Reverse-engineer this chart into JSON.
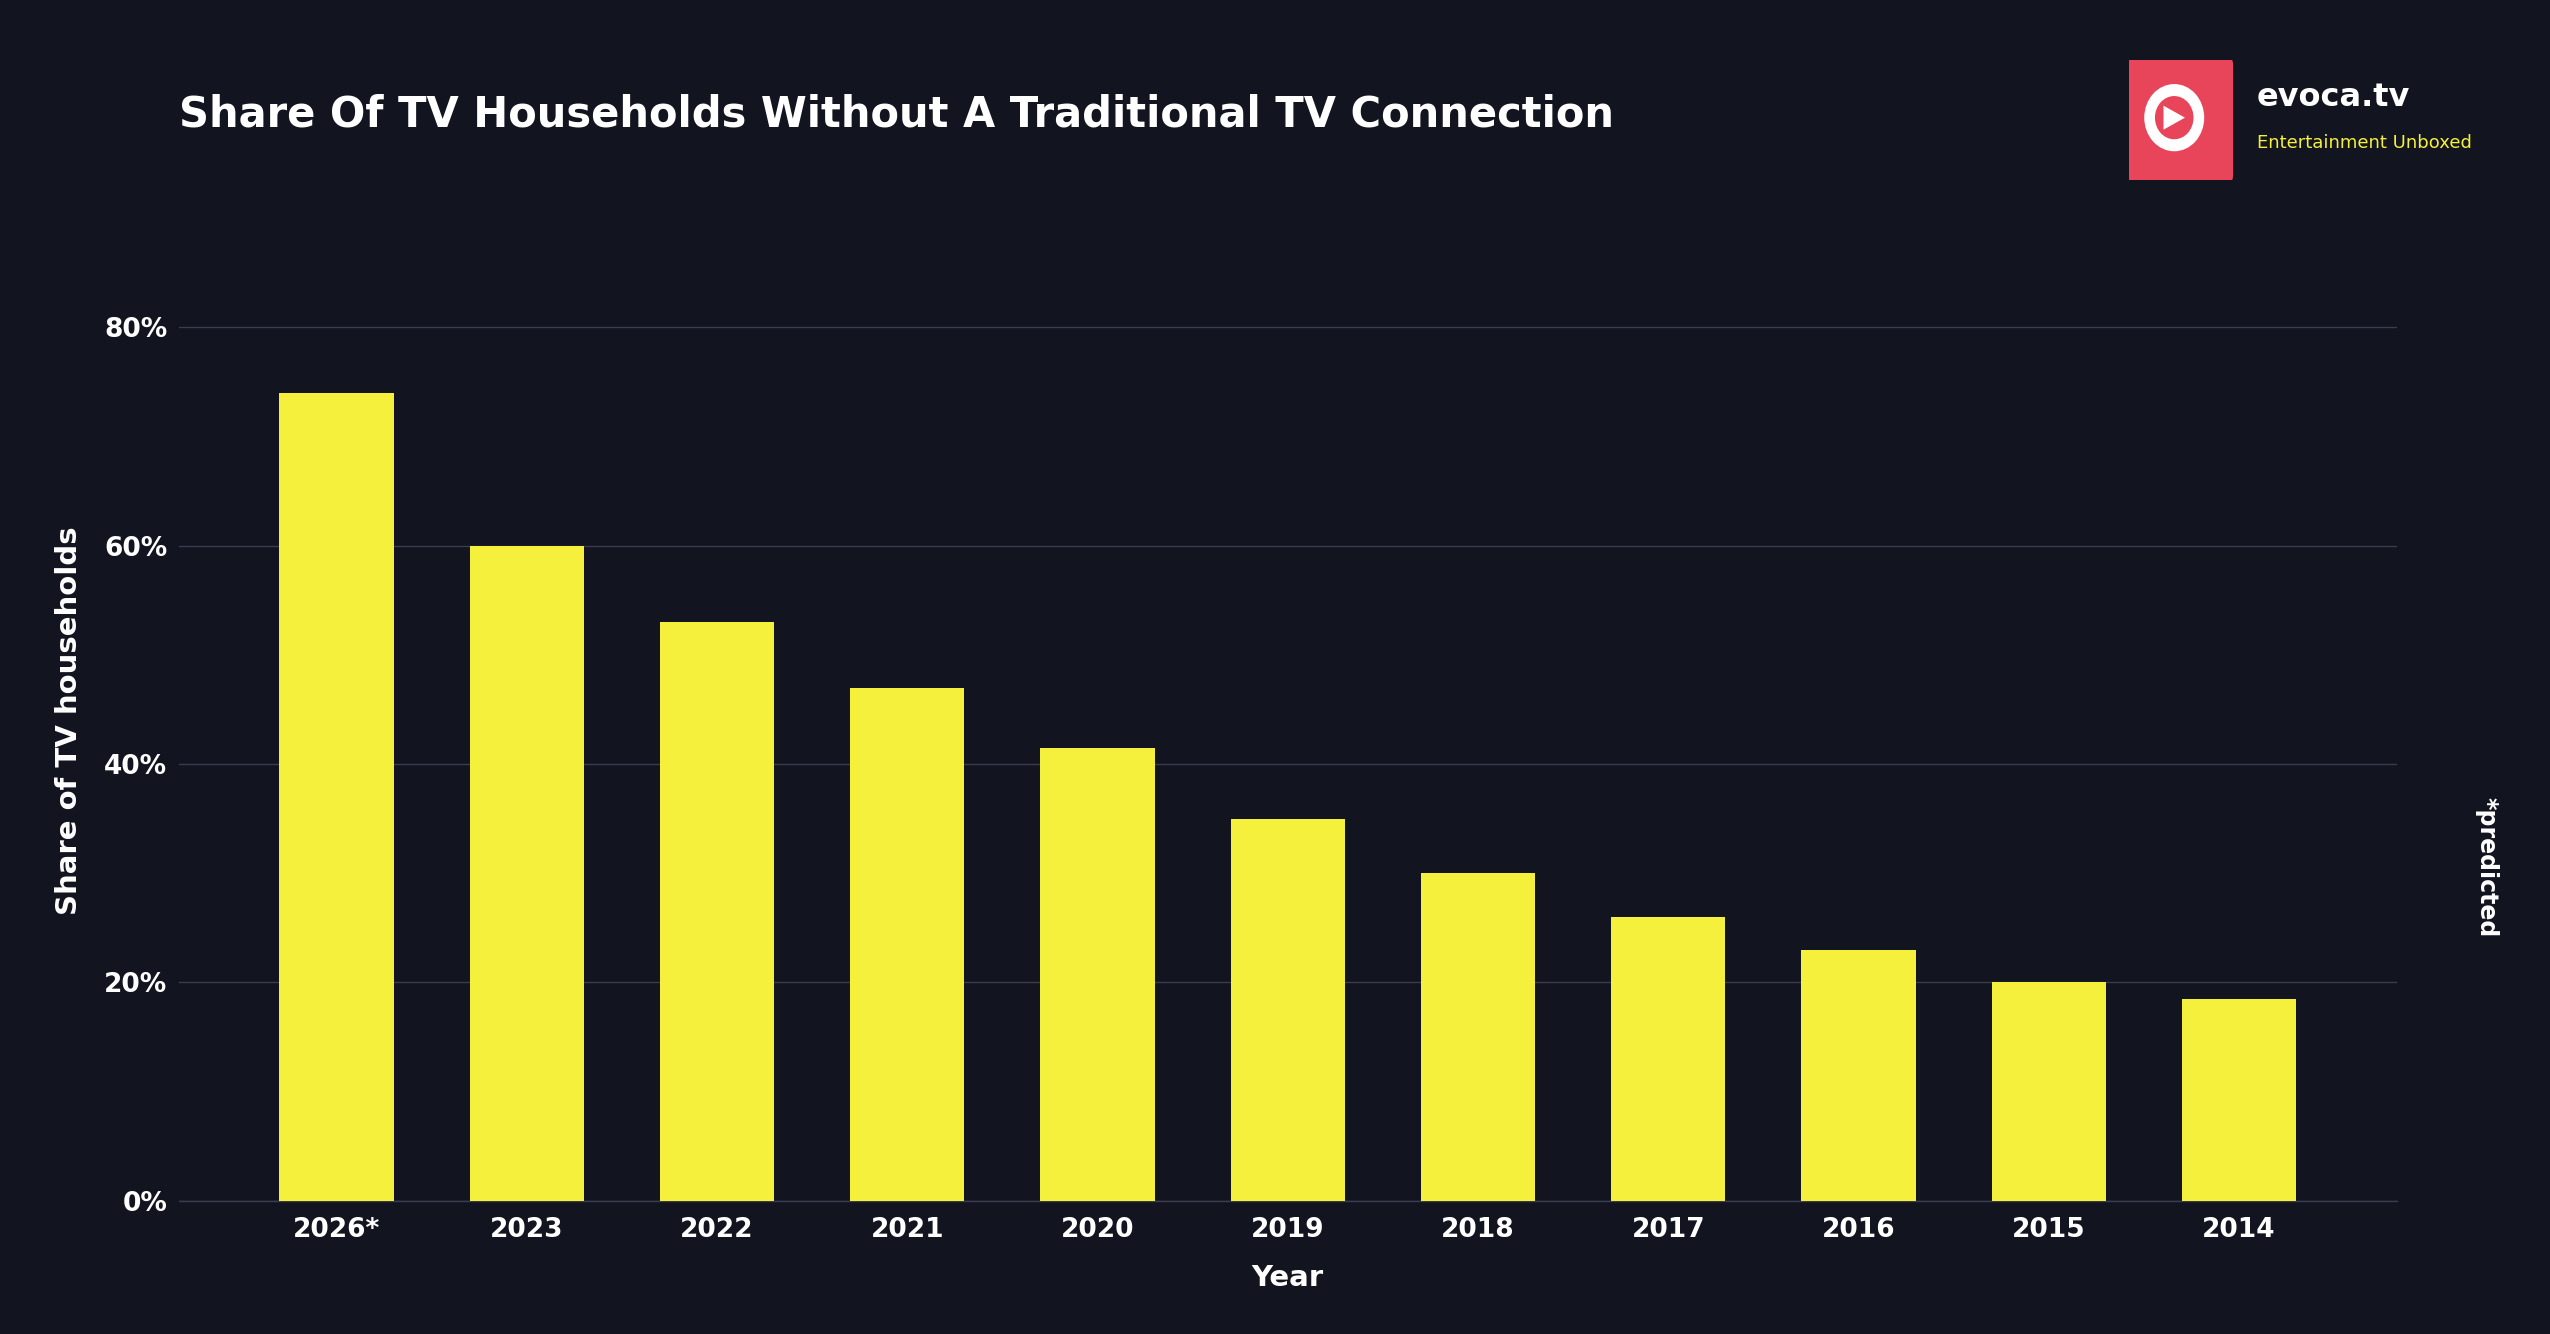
{
  "title": "Share Of TV Households Without A Traditional TV Connection",
  "xlabel": "Year",
  "ylabel": "Share of TV households",
  "background_color": "#12141f",
  "bar_color": "#f5f03c",
  "grid_color": "#3a3d50",
  "text_color": "#ffffff",
  "categories": [
    "2026*",
    "2023",
    "2022",
    "2021",
    "2020",
    "2019",
    "2018",
    "2017",
    "2016",
    "2015",
    "2014"
  ],
  "values": [
    74,
    60,
    53,
    47,
    41.5,
    35,
    30,
    26,
    23,
    20,
    18.5
  ],
  "yticks": [
    0,
    20,
    40,
    60,
    80
  ],
  "ylim": [
    0,
    88
  ],
  "title_fontsize": 30,
  "axis_label_fontsize": 21,
  "tick_fontsize": 19,
  "annotation_text": "*predicted",
  "annotation_fontsize": 17,
  "logo_text_main": "evoca.tv",
  "logo_text_sub": "Entertainment Unboxed",
  "logo_color": "#e8445a",
  "logo_sub_color": "#f5f03c"
}
